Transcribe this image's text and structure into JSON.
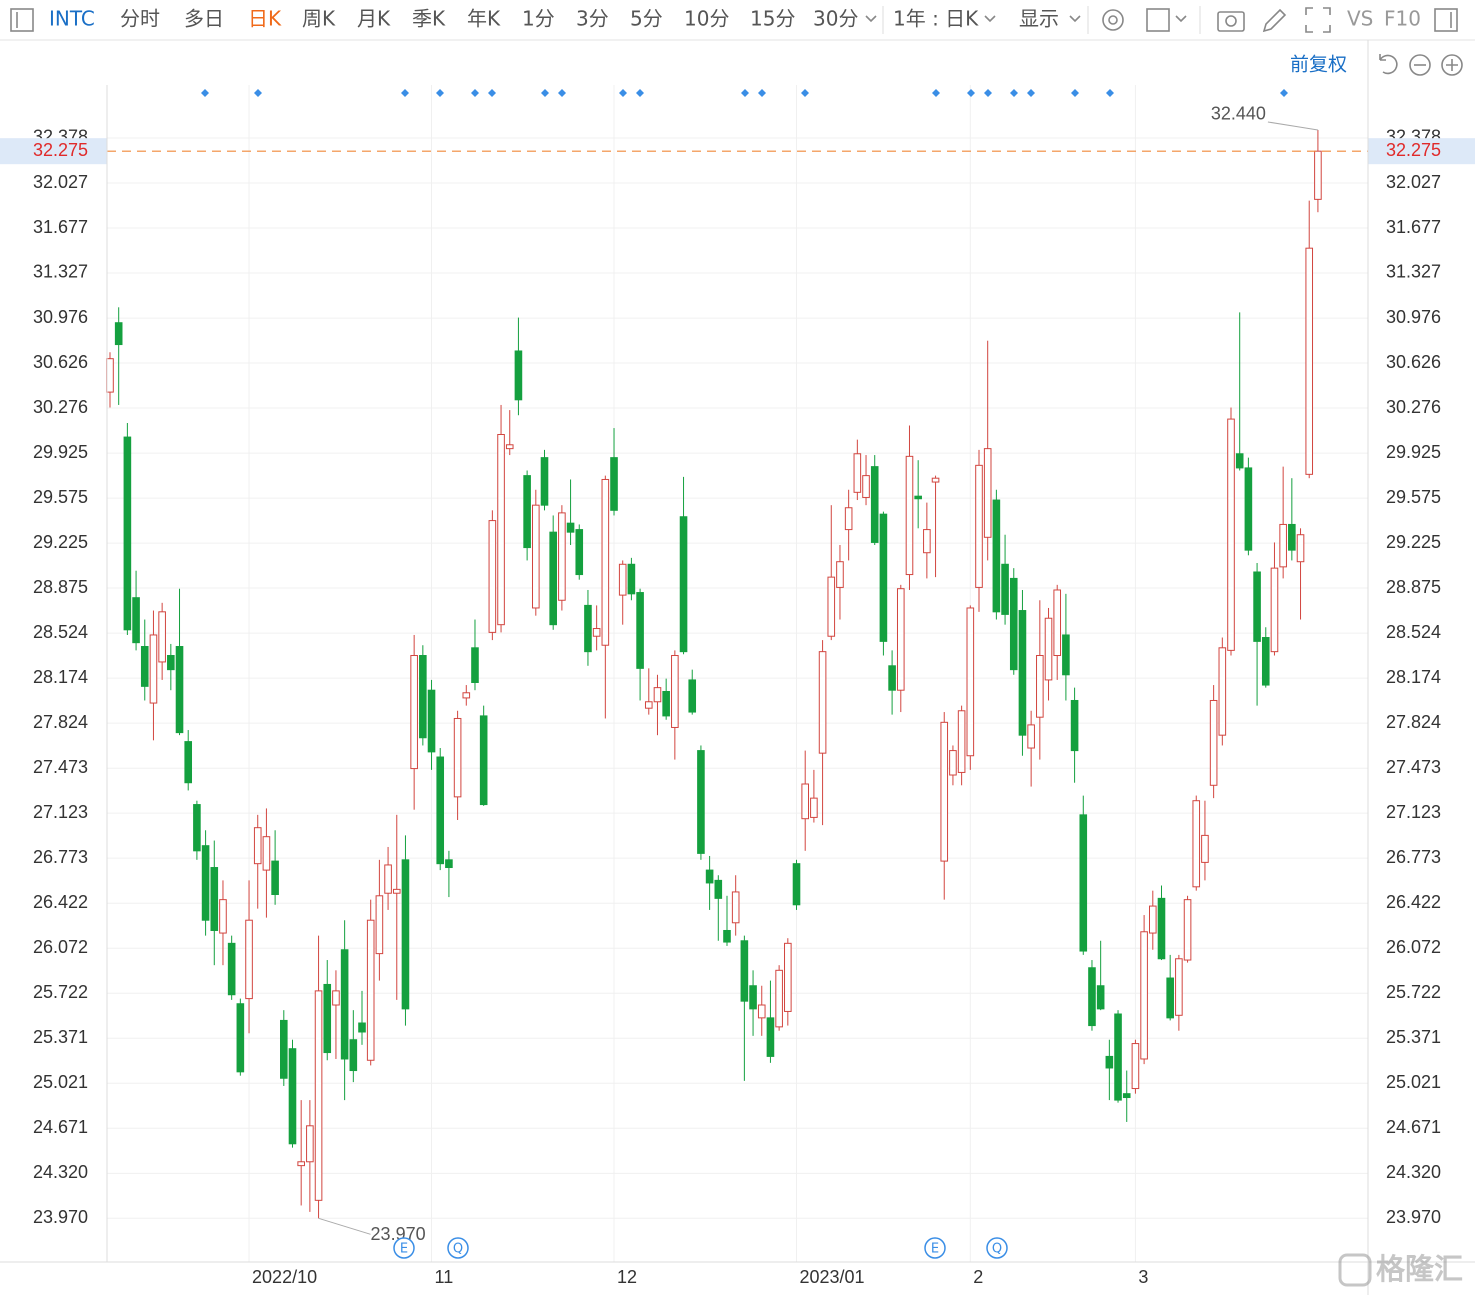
{
  "toolbar": {
    "symbol": "INTC",
    "periods": [
      "分时",
      "多日",
      "日K",
      "周K",
      "月K",
      "季K",
      "年K",
      "1分",
      "3分",
      "5分",
      "10分",
      "15分",
      "30分"
    ],
    "active_period": 2,
    "range": "1年 : 日K",
    "display": "显示",
    "vs": "VS",
    "f10": "F10"
  },
  "adjust": "前复权",
  "chart_data": {
    "type": "candlestick",
    "open": [
      30.4,
      30.94,
      30.05,
      28.8,
      28.42,
      27.98,
      28.3,
      28.35,
      28.42,
      27.68,
      27.19,
      26.87,
      26.7,
      26.19,
      26.11,
      25.64,
      25.68,
      26.73,
      26.68,
      26.75,
      25.51,
      25.29,
      24.38,
      24.41,
      24.11,
      25.79,
      25.63,
      26.06,
      25.36,
      25.49,
      25.2,
      26.03,
      26.5,
      26.5,
      26.76,
      27.47,
      28.35,
      28.08,
      27.56,
      26.76,
      27.25,
      28.02,
      28.41,
      27.88,
      28.53,
      28.59,
      29.96,
      30.72,
      29.75,
      28.72,
      29.89,
      29.31,
      28.78,
      29.38,
      29.33,
      28.74,
      28.5,
      28.43,
      29.89,
      28.82,
      29.06,
      28.84,
      27.94,
      27.99,
      28.07,
      27.79,
      29.43,
      28.16,
      27.61,
      26.68,
      26.6,
      26.21,
      26.27,
      26.13,
      25.78,
      25.53,
      25.53,
      25.46,
      25.58,
      26.73,
      27.08,
      27.09,
      27.59,
      28.5,
      28.88,
      29.33,
      29.62,
      29.58,
      29.82,
      29.45,
      28.27,
      28.08,
      28.98,
      29.59,
      29.15,
      29.7,
      26.75,
      27.42,
      27.44,
      27.57,
      28.88,
      29.27,
      29.56,
      29.06,
      28.95,
      28.7,
      27.63,
      27.87,
      28.16,
      28.35,
      28.51,
      28.0,
      27.11,
      25.92,
      25.78,
      25.23,
      25.56,
      24.94,
      24.98,
      25.21,
      26.19,
      26.46,
      25.84,
      25.55,
      25.98,
      26.55,
      26.74,
      27.34,
      27.73,
      28.39,
      29.92,
      29.81,
      29.0,
      28.49,
      28.38,
      29.04,
      29.37,
      29.08,
      29.76,
      31.9
    ],
    "high": [
      30.71,
      31.06,
      30.16,
      29.01,
      28.63,
      28.7,
      28.76,
      28.44,
      28.87,
      27.77,
      27.22,
      26.99,
      26.91,
      26.6,
      26.17,
      25.68,
      26.6,
      27.11,
      27.16,
      26.99,
      25.59,
      25.36,
      24.89,
      24.89,
      26.17,
      25.98,
      25.9,
      26.29,
      25.59,
      25.74,
      26.45,
      26.76,
      26.86,
      27.11,
      26.95,
      28.51,
      28.43,
      28.16,
      27.63,
      26.83,
      27.92,
      28.12,
      28.63,
      27.96,
      29.48,
      30.3,
      30.26,
      30.98,
      29.79,
      29.64,
      29.95,
      29.44,
      29.52,
      29.72,
      29.37,
      28.86,
      28.74,
      29.75,
      30.12,
      29.09,
      29.11,
      28.87,
      28.25,
      28.2,
      28.17,
      28.39,
      29.74,
      28.24,
      27.65,
      26.79,
      26.64,
      26.48,
      26.64,
      26.17,
      25.9,
      25.78,
      25.82,
      25.94,
      26.15,
      26.76,
      27.61,
      27.46,
      28.47,
      29.52,
      29.21,
      29.64,
      30.03,
      29.91,
      29.91,
      29.47,
      28.39,
      28.9,
      30.14,
      29.87,
      29.54,
      29.75,
      27.91,
      27.65,
      27.96,
      28.74,
      29.95,
      30.8,
      29.64,
      29.29,
      29.03,
      28.86,
      27.92,
      28.78,
      28.72,
      28.9,
      28.83,
      28.1,
      27.26,
      25.98,
      26.13,
      25.36,
      25.59,
      25.12,
      25.36,
      26.33,
      26.52,
      26.56,
      26.02,
      26.02,
      26.48,
      27.26,
      27.22,
      28.12,
      28.49,
      30.28,
      31.02,
      29.89,
      29.07,
      28.57,
      29.23,
      29.82,
      29.73,
      29.34,
      31.89,
      32.44
    ],
    "low": [
      30.28,
      30.3,
      28.51,
      28.39,
      28.0,
      27.69,
      28.16,
      28.08,
      27.73,
      27.3,
      26.76,
      26.17,
      25.94,
      25.94,
      25.67,
      25.08,
      25.41,
      26.38,
      26.31,
      26.41,
      25.0,
      24.52,
      24.07,
      24.02,
      23.97,
      25.2,
      25.21,
      24.89,
      25.03,
      25.32,
      25.16,
      25.82,
      26.37,
      25.67,
      25.47,
      27.15,
      27.65,
      27.46,
      26.68,
      26.47,
      27.07,
      27.96,
      28.08,
      27.18,
      28.47,
      28.53,
      29.91,
      30.22,
      29.09,
      28.66,
      29.48,
      28.55,
      28.7,
      29.21,
      28.94,
      28.27,
      28.39,
      27.86,
      29.44,
      28.59,
      28.78,
      28.0,
      27.89,
      27.73,
      27.85,
      27.54,
      28.36,
      27.89,
      26.76,
      26.37,
      26.13,
      26.09,
      26.17,
      25.04,
      25.39,
      25.39,
      25.18,
      25.43,
      25.47,
      26.37,
      26.83,
      27.05,
      27.03,
      28.47,
      28.63,
      29.09,
      29.56,
      29.52,
      29.21,
      28.35,
      27.89,
      27.91,
      28.86,
      29.34,
      28.95,
      28.96,
      26.45,
      27.34,
      27.34,
      27.46,
      28.69,
      29.09,
      28.63,
      28.59,
      28.2,
      27.57,
      27.33,
      27.54,
      28.0,
      28.16,
      28.0,
      27.36,
      26.02,
      25.43,
      25.59,
      24.89,
      24.87,
      24.72,
      24.94,
      25.17,
      26.06,
      25.98,
      25.51,
      25.43,
      25.96,
      26.52,
      26.6,
      27.24,
      27.65,
      28.35,
      29.79,
      29.13,
      27.96,
      28.1,
      28.35,
      28.95,
      29.09,
      28.63,
      29.73,
      31.8
    ],
    "close": [
      30.66,
      30.77,
      28.55,
      28.45,
      28.11,
      28.51,
      28.69,
      28.24,
      27.75,
      27.36,
      26.83,
      26.29,
      26.21,
      26.45,
      25.71,
      25.11,
      26.29,
      27.01,
      26.94,
      26.49,
      25.06,
      24.55,
      24.41,
      24.69,
      25.74,
      25.26,
      25.74,
      25.21,
      25.12,
      25.42,
      26.29,
      26.48,
      26.72,
      26.53,
      25.6,
      28.35,
      27.71,
      27.6,
      26.73,
      26.7,
      27.86,
      28.06,
      28.14,
      27.19,
      29.4,
      30.07,
      29.99,
      30.34,
      29.19,
      29.52,
      29.52,
      28.59,
      29.46,
      29.31,
      28.98,
      28.38,
      28.56,
      29.72,
      29.48,
      29.06,
      28.83,
      28.25,
      27.99,
      28.1,
      27.88,
      28.35,
      28.38,
      27.91,
      26.81,
      26.58,
      26.46,
      26.12,
      26.51,
      25.66,
      25.6,
      25.63,
      25.23,
      25.9,
      26.11,
      26.41,
      27.35,
      27.24,
      28.38,
      28.96,
      29.08,
      29.5,
      29.92,
      29.75,
      29.23,
      28.46,
      28.08,
      28.87,
      29.9,
      29.57,
      29.33,
      29.73,
      27.83,
      27.61,
      27.92,
      28.72,
      29.83,
      29.96,
      28.69,
      28.67,
      28.24,
      27.73,
      27.81,
      28.35,
      28.64,
      28.86,
      28.2,
      27.61,
      26.05,
      25.47,
      25.6,
      25.14,
      24.89,
      24.91,
      25.33,
      26.2,
      26.4,
      25.99,
      25.53,
      25.99,
      26.45,
      27.22,
      26.95,
      28.0,
      28.41,
      30.19,
      29.81,
      29.17,
      28.46,
      28.12,
      29.03,
      29.37,
      29.17,
      29.29,
      31.52,
      32.275
    ],
    "up_color": "#d2453f",
    "down_color": "#14a03f",
    "ylim": [
      23.63,
      32.79
    ],
    "yticks": [
      {
        "value": 23.97,
        "label": "23.970"
      },
      {
        "value": 24.32,
        "label": "24.320"
      },
      24.671,
      25.021,
      25.371,
      25.722,
      26.072,
      26.422,
      26.773,
      27.123,
      27.473,
      27.824,
      28.174,
      28.524,
      28.875,
      29.225,
      29.575,
      29.925,
      30.276,
      30.626,
      30.976,
      31.327,
      31.677,
      32.027,
      32.378
    ],
    "xticks": [
      {
        "value": 16,
        "label": "2022/10"
      },
      {
        "value": 37,
        "label": "11"
      },
      {
        "value": 58,
        "label": "12"
      },
      {
        "value": 79,
        "label": "2023/01"
      },
      {
        "value": 99,
        "label": "2"
      },
      {
        "value": 118,
        "label": "3"
      }
    ],
    "grid": true,
    "last_price": 32.275,
    "last_price_color": "#f0893a",
    "annotations": [
      {
        "text": "32.440"
      },
      {
        "text": "23.970"
      }
    ]
  },
  "events": [
    "E",
    "Q",
    "E",
    "Q"
  ],
  "watermark": "格隆汇"
}
